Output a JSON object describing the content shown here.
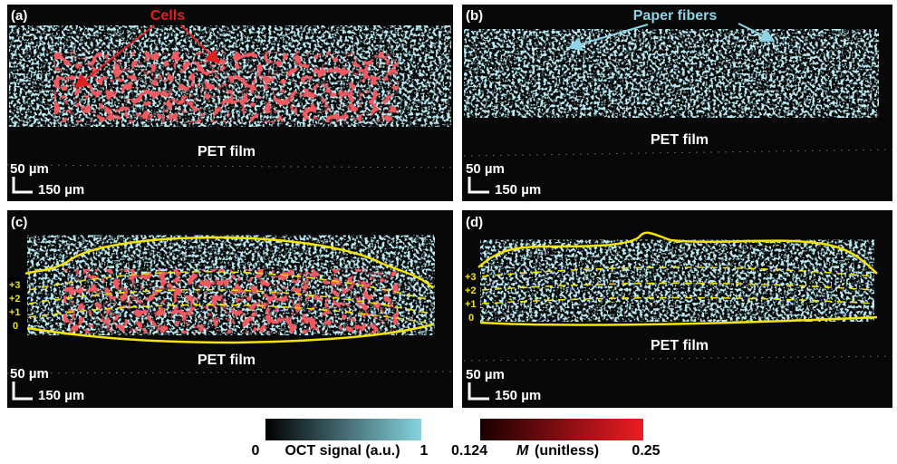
{
  "panels": [
    {
      "label": "(a)",
      "annotation": "Cells",
      "film": "PET film",
      "scale_v": "50 µm",
      "scale_h": "150 µm"
    },
    {
      "label": "(b)",
      "annotation": "Paper fibers",
      "film": "PET film",
      "scale_v": "50 µm",
      "scale_h": "150 µm"
    },
    {
      "label": "(c)",
      "film": "PET film",
      "scale_v": "50 µm",
      "scale_h": "150 µm",
      "layers": [
        "+3",
        "+2",
        "+1",
        "0"
      ]
    },
    {
      "label": "(d)",
      "film": "PET film",
      "scale_v": "50 µm",
      "scale_h": "150 µm",
      "layers": [
        "+3",
        "+2",
        "+1",
        "0"
      ]
    }
  ],
  "colorbars": [
    {
      "min": "0",
      "title": "OCT signal (a.u.)",
      "max": "1"
    },
    {
      "min": "0.124",
      "symbol": "M",
      "title": "(unitless)",
      "max": "0.25"
    }
  ]
}
